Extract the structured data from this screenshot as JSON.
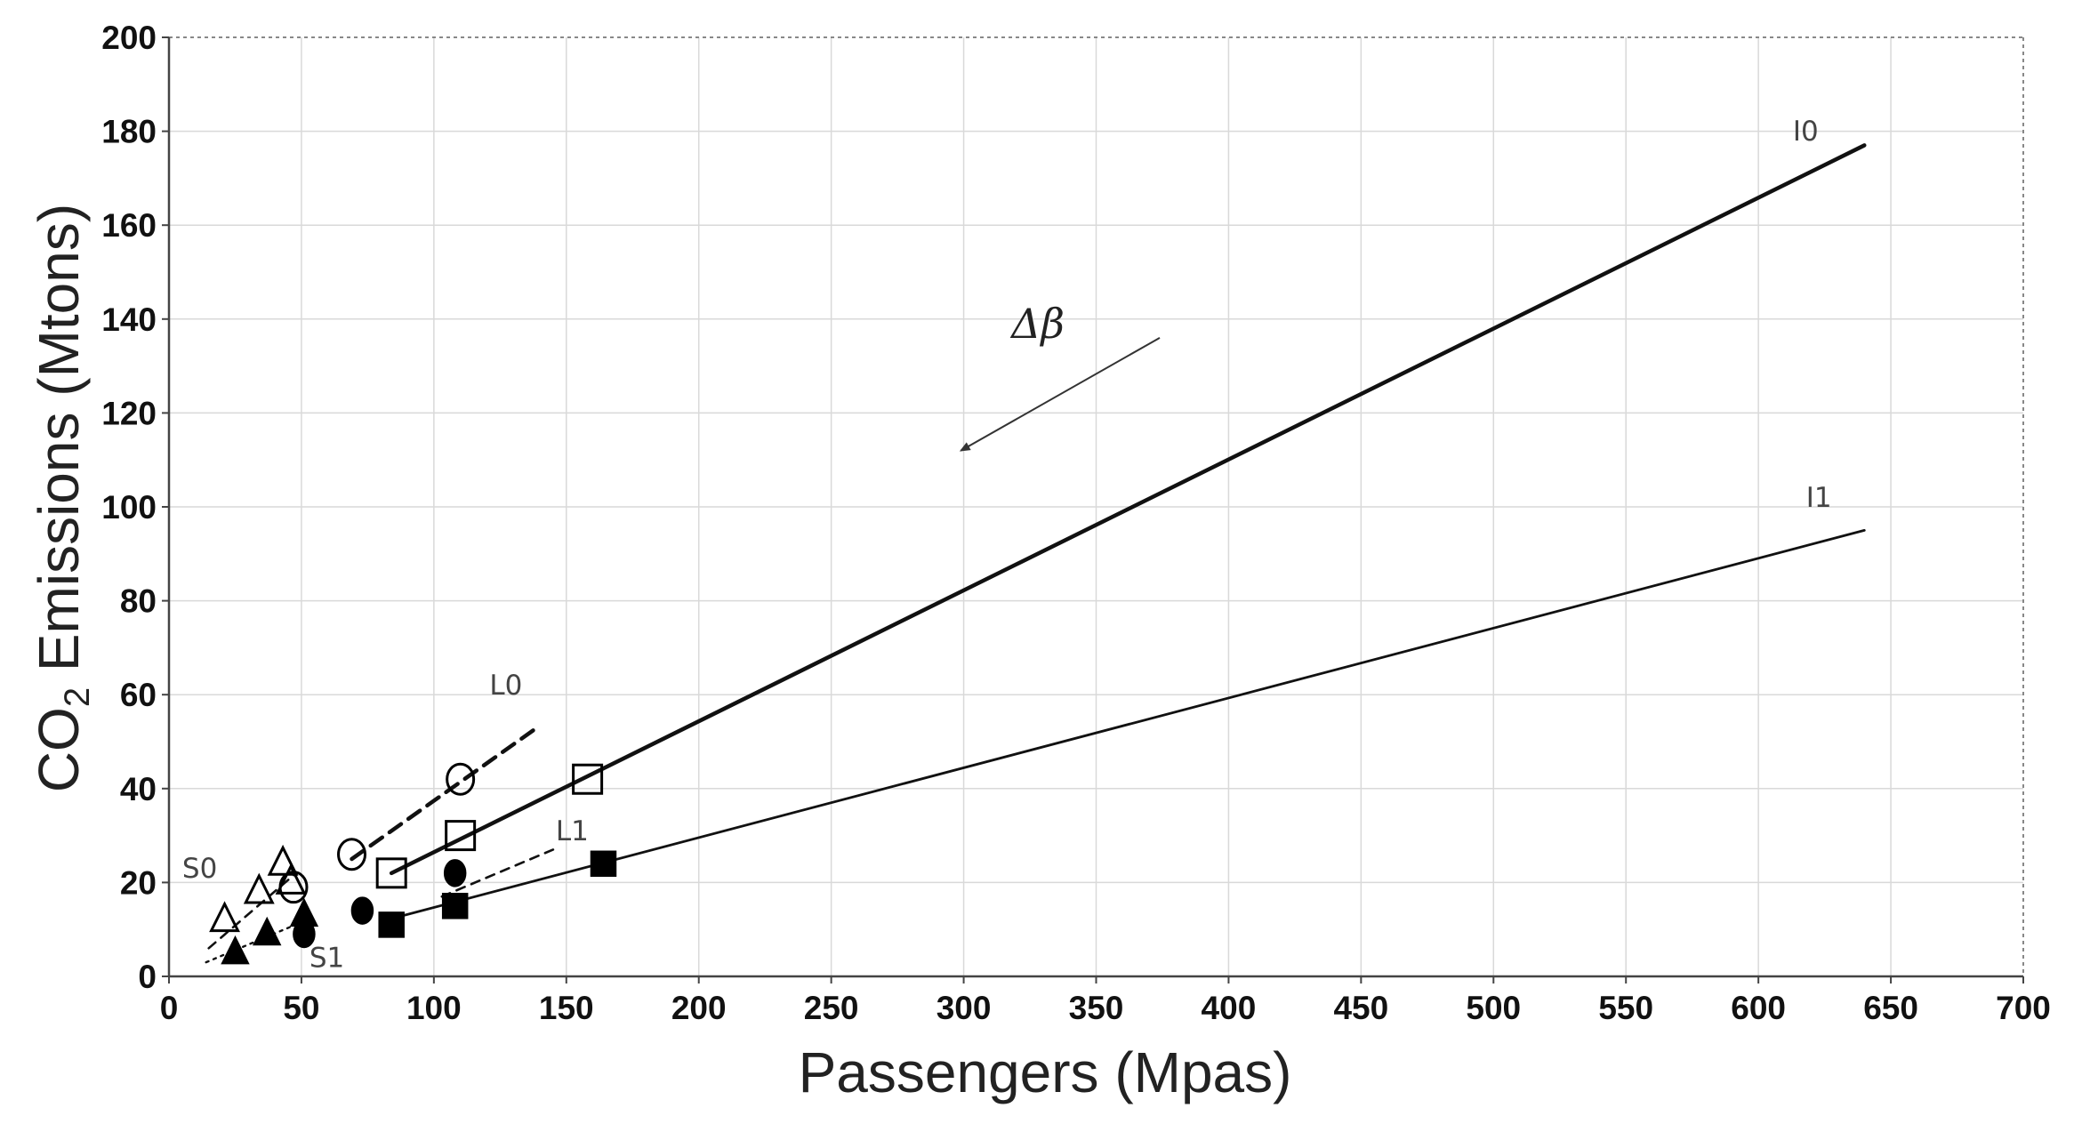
{
  "chart_data": {
    "type": "scatter",
    "title": "",
    "xlabel": "Passengers (Mpas)",
    "ylabel_main": "CO",
    "ylabel_sub": "2",
    "ylabel_rest": " Emissions (Mtons)",
    "xlim": [
      0,
      700
    ],
    "ylim": [
      0,
      200
    ],
    "xticks": [
      0,
      50,
      100,
      150,
      200,
      250,
      300,
      350,
      400,
      450,
      500,
      550,
      600,
      650,
      700
    ],
    "yticks": [
      0,
      20,
      40,
      60,
      80,
      100,
      120,
      140,
      160,
      180,
      200
    ],
    "grid": true,
    "lines": [
      {
        "name": "I0",
        "style": "solid-thick",
        "x": [
          84,
          640
        ],
        "y": [
          22,
          177
        ],
        "label_at": [
          613,
          178
        ]
      },
      {
        "name": "I1",
        "style": "solid",
        "x": [
          82,
          640
        ],
        "y": [
          12,
          95
        ],
        "label_at": [
          618,
          100
        ]
      },
      {
        "name": "L0",
        "style": "dashed-thick",
        "x": [
          69,
          139
        ],
        "y": [
          25,
          53
        ],
        "label_at": [
          121,
          60
        ]
      },
      {
        "name": "L1",
        "style": "dashed",
        "x": [
          103,
          145
        ],
        "y": [
          17,
          27
        ],
        "label_at": [
          146,
          29
        ]
      },
      {
        "name": "S0",
        "style": "dashed",
        "x": [
          15,
          48
        ],
        "y": [
          6,
          22
        ],
        "label_at": [
          5,
          21
        ]
      },
      {
        "name": "S1",
        "style": "dotted",
        "x": [
          14,
          52
        ],
        "y": [
          3,
          12
        ],
        "label_at": [
          53,
          2
        ]
      }
    ],
    "series": [
      {
        "marker": "open-triangle",
        "x": [
          21,
          34,
          43,
          46
        ],
        "y": [
          12,
          18,
          24,
          20
        ]
      },
      {
        "marker": "filled-triangle",
        "x": [
          25,
          37,
          51
        ],
        "y": [
          5,
          9,
          13
        ]
      },
      {
        "marker": "open-circle",
        "x": [
          47,
          69,
          110
        ],
        "y": [
          19,
          26,
          42
        ]
      },
      {
        "marker": "filled-circle",
        "x": [
          51,
          73,
          108
        ],
        "y": [
          9,
          14,
          22
        ]
      },
      {
        "marker": "open-square",
        "x": [
          84,
          110,
          158
        ],
        "y": [
          22,
          30,
          42
        ]
      },
      {
        "marker": "filled-square",
        "x": [
          84,
          108,
          164
        ],
        "y": [
          11,
          15,
          24
        ]
      }
    ],
    "annotation": {
      "text": "Δβ",
      "text_at": [
        318,
        136
      ],
      "arrow_from": [
        374,
        136
      ],
      "arrow_to": [
        299,
        112
      ]
    }
  }
}
